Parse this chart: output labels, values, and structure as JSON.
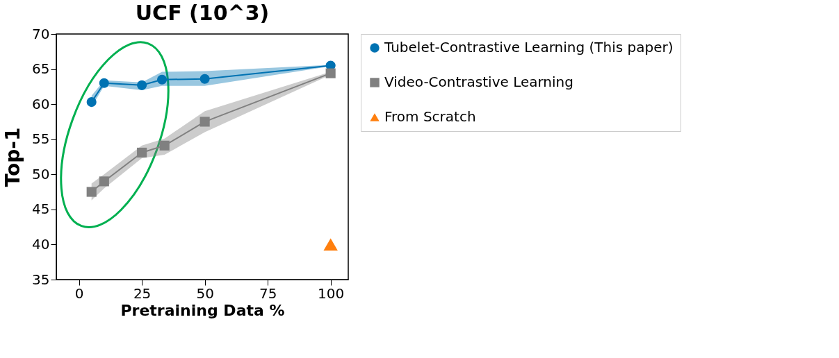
{
  "chart_data": {
    "type": "line",
    "title": "UCF (10^3)",
    "xlabel": "Pretraining Data %",
    "ylabel": "Top-1",
    "xlim": [
      -9,
      107
    ],
    "xticks": [
      0,
      25,
      50,
      75,
      100
    ],
    "ylim": [
      35,
      70
    ],
    "yticks": [
      35,
      40,
      45,
      50,
      55,
      60,
      65,
      70
    ],
    "grid": false,
    "legend": "right",
    "series": [
      {
        "name": "Tubelet-Contrastive Learning (This paper)",
        "marker": "circle",
        "color": "#0072b2",
        "x": [
          5,
          10,
          25,
          33,
          50,
          100
        ],
        "values": [
          60.3,
          63.0,
          62.7,
          63.5,
          63.6,
          65.5
        ],
        "lower": [
          59.6,
          62.6,
          62.0,
          62.6,
          62.6,
          65.4
        ],
        "upper": [
          61.2,
          63.4,
          63.1,
          64.6,
          64.7,
          65.6
        ]
      },
      {
        "name": "Video-Contrastive Learning",
        "marker": "square",
        "color": "#808080",
        "x": [
          5,
          10,
          25,
          34,
          50,
          100
        ],
        "values": [
          47.5,
          49.0,
          53.1,
          54.1,
          57.5,
          64.4
        ],
        "lower": [
          46.3,
          48.0,
          52.3,
          52.8,
          56.0,
          64.2
        ],
        "upper": [
          48.7,
          50.0,
          54.1,
          55.1,
          59.0,
          64.6
        ]
      },
      {
        "name": "From Scratch",
        "type": "scatter",
        "marker": "triangle",
        "color": "#ff7f0e",
        "x": [
          100
        ],
        "values": [
          40.0
        ]
      }
    ]
  }
}
